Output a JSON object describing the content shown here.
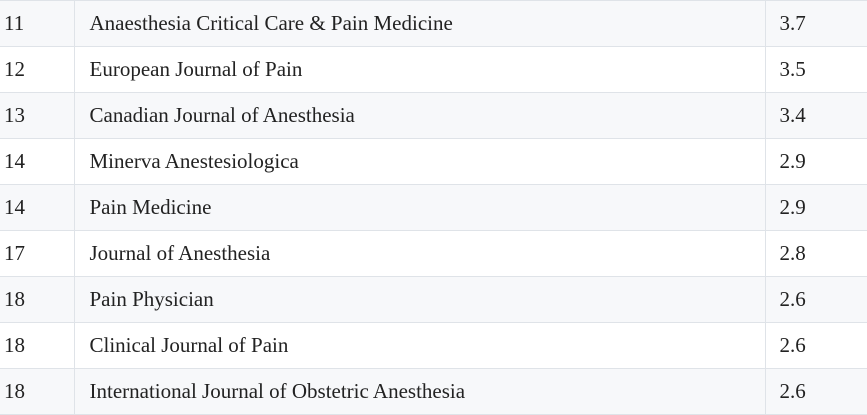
{
  "table": {
    "rows": [
      [
        "11",
        "Anaesthesia Critical Care & Pain Medicine",
        "3.7"
      ],
      [
        "12",
        "European Journal of Pain",
        "3.5"
      ],
      [
        "13",
        "Canadian Journal of Anesthesia",
        "3.4"
      ],
      [
        "14",
        "Minerva Anestesiologica",
        "2.9"
      ],
      [
        "14",
        "Pain Medicine",
        "2.9"
      ],
      [
        "17",
        "Journal of Anesthesia",
        "2.8"
      ],
      [
        "18",
        "Pain Physician",
        "2.6"
      ],
      [
        "18",
        "Clinical Journal of Pain",
        "2.6"
      ],
      [
        "18",
        "International Journal of Obstetric Anesthesia",
        "2.6"
      ]
    ]
  }
}
